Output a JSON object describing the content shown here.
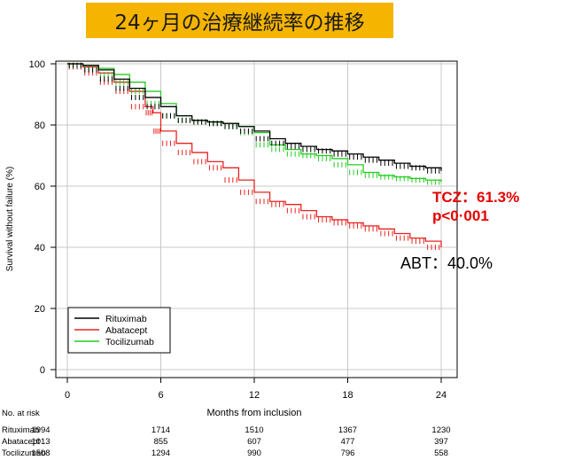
{
  "header": {
    "title": "24ヶ月の治療継続率の推移"
  },
  "annotations": {
    "tcz_rate": "TCZ：61.3%",
    "tcz_p": "p<0·001",
    "abt_rate": "ABT：40.0%"
  },
  "colors": {
    "Rituximab": "#000000",
    "Abatacept": "#e8231f",
    "Tocilizumab": "#22cc22",
    "title_bg": "#f5b400"
  },
  "chart_data": {
    "type": "line",
    "xlabel": "Months from inclusion",
    "ylabel": "Survival without failure (%)",
    "xlim": [
      0,
      24
    ],
    "ylim": [
      0,
      100
    ],
    "x_ticks": [
      "0",
      "6",
      "12",
      "18",
      "24"
    ],
    "y_ticks": [
      "0",
      "20",
      "40",
      "60",
      "80",
      "100"
    ],
    "grid": true,
    "legend_position": "bottom-left",
    "series": [
      {
        "name": "Rituximab",
        "x": [
          0,
          1,
          2,
          3,
          4,
          5,
          6,
          7,
          8,
          9,
          10,
          11,
          12,
          13,
          14,
          15,
          16,
          17,
          18,
          19,
          20,
          21,
          22,
          23,
          24
        ],
        "y": [
          100,
          99.5,
          98,
          95,
          92,
          89,
          86,
          83,
          81.5,
          81,
          80.5,
          79.5,
          78,
          75.5,
          74,
          73,
          72,
          71.5,
          70.5,
          69.5,
          68.5,
          67.5,
          66.5,
          66,
          65
        ]
      },
      {
        "name": "Abatacept",
        "x": [
          0,
          1,
          2,
          3,
          4,
          5,
          5.5,
          6,
          7,
          8,
          9,
          10,
          11,
          12,
          13,
          14,
          15,
          16,
          17,
          18,
          19,
          20,
          21,
          22,
          23,
          24
        ],
        "y": [
          100,
          99,
          97,
          94,
          91,
          86,
          84,
          78,
          74,
          71,
          68,
          66,
          62,
          58,
          55,
          54,
          52,
          50,
          49,
          48,
          47,
          46,
          44.5,
          43,
          42,
          40
        ]
      },
      {
        "name": "Tocilizumab",
        "x": [
          0,
          1,
          2,
          3,
          4,
          5,
          6,
          7,
          8,
          9,
          10,
          11,
          12,
          13,
          14,
          15,
          16,
          17,
          18,
          19,
          20,
          21,
          22,
          23,
          24
        ],
        "y": [
          100,
          99.5,
          98.5,
          96.5,
          94,
          91,
          87,
          83,
          81.5,
          81,
          80.5,
          79.5,
          77.5,
          73.5,
          72,
          70.5,
          70,
          69,
          67,
          64.5,
          63.5,
          63,
          62.5,
          62,
          61.3
        ]
      }
    ]
  },
  "risk_table": {
    "heading": "No. at risk",
    "rows": [
      {
        "label": "Rituximab",
        "values": [
          "1994",
          "1714",
          "1510",
          "1367",
          "1230"
        ]
      },
      {
        "label": "Abatacept",
        "values": [
          "1013",
          "855",
          "607",
          "477",
          "397"
        ]
      },
      {
        "label": "Tocilizumab",
        "values": [
          "1508",
          "1294",
          "990",
          "796",
          "558"
        ]
      }
    ]
  }
}
